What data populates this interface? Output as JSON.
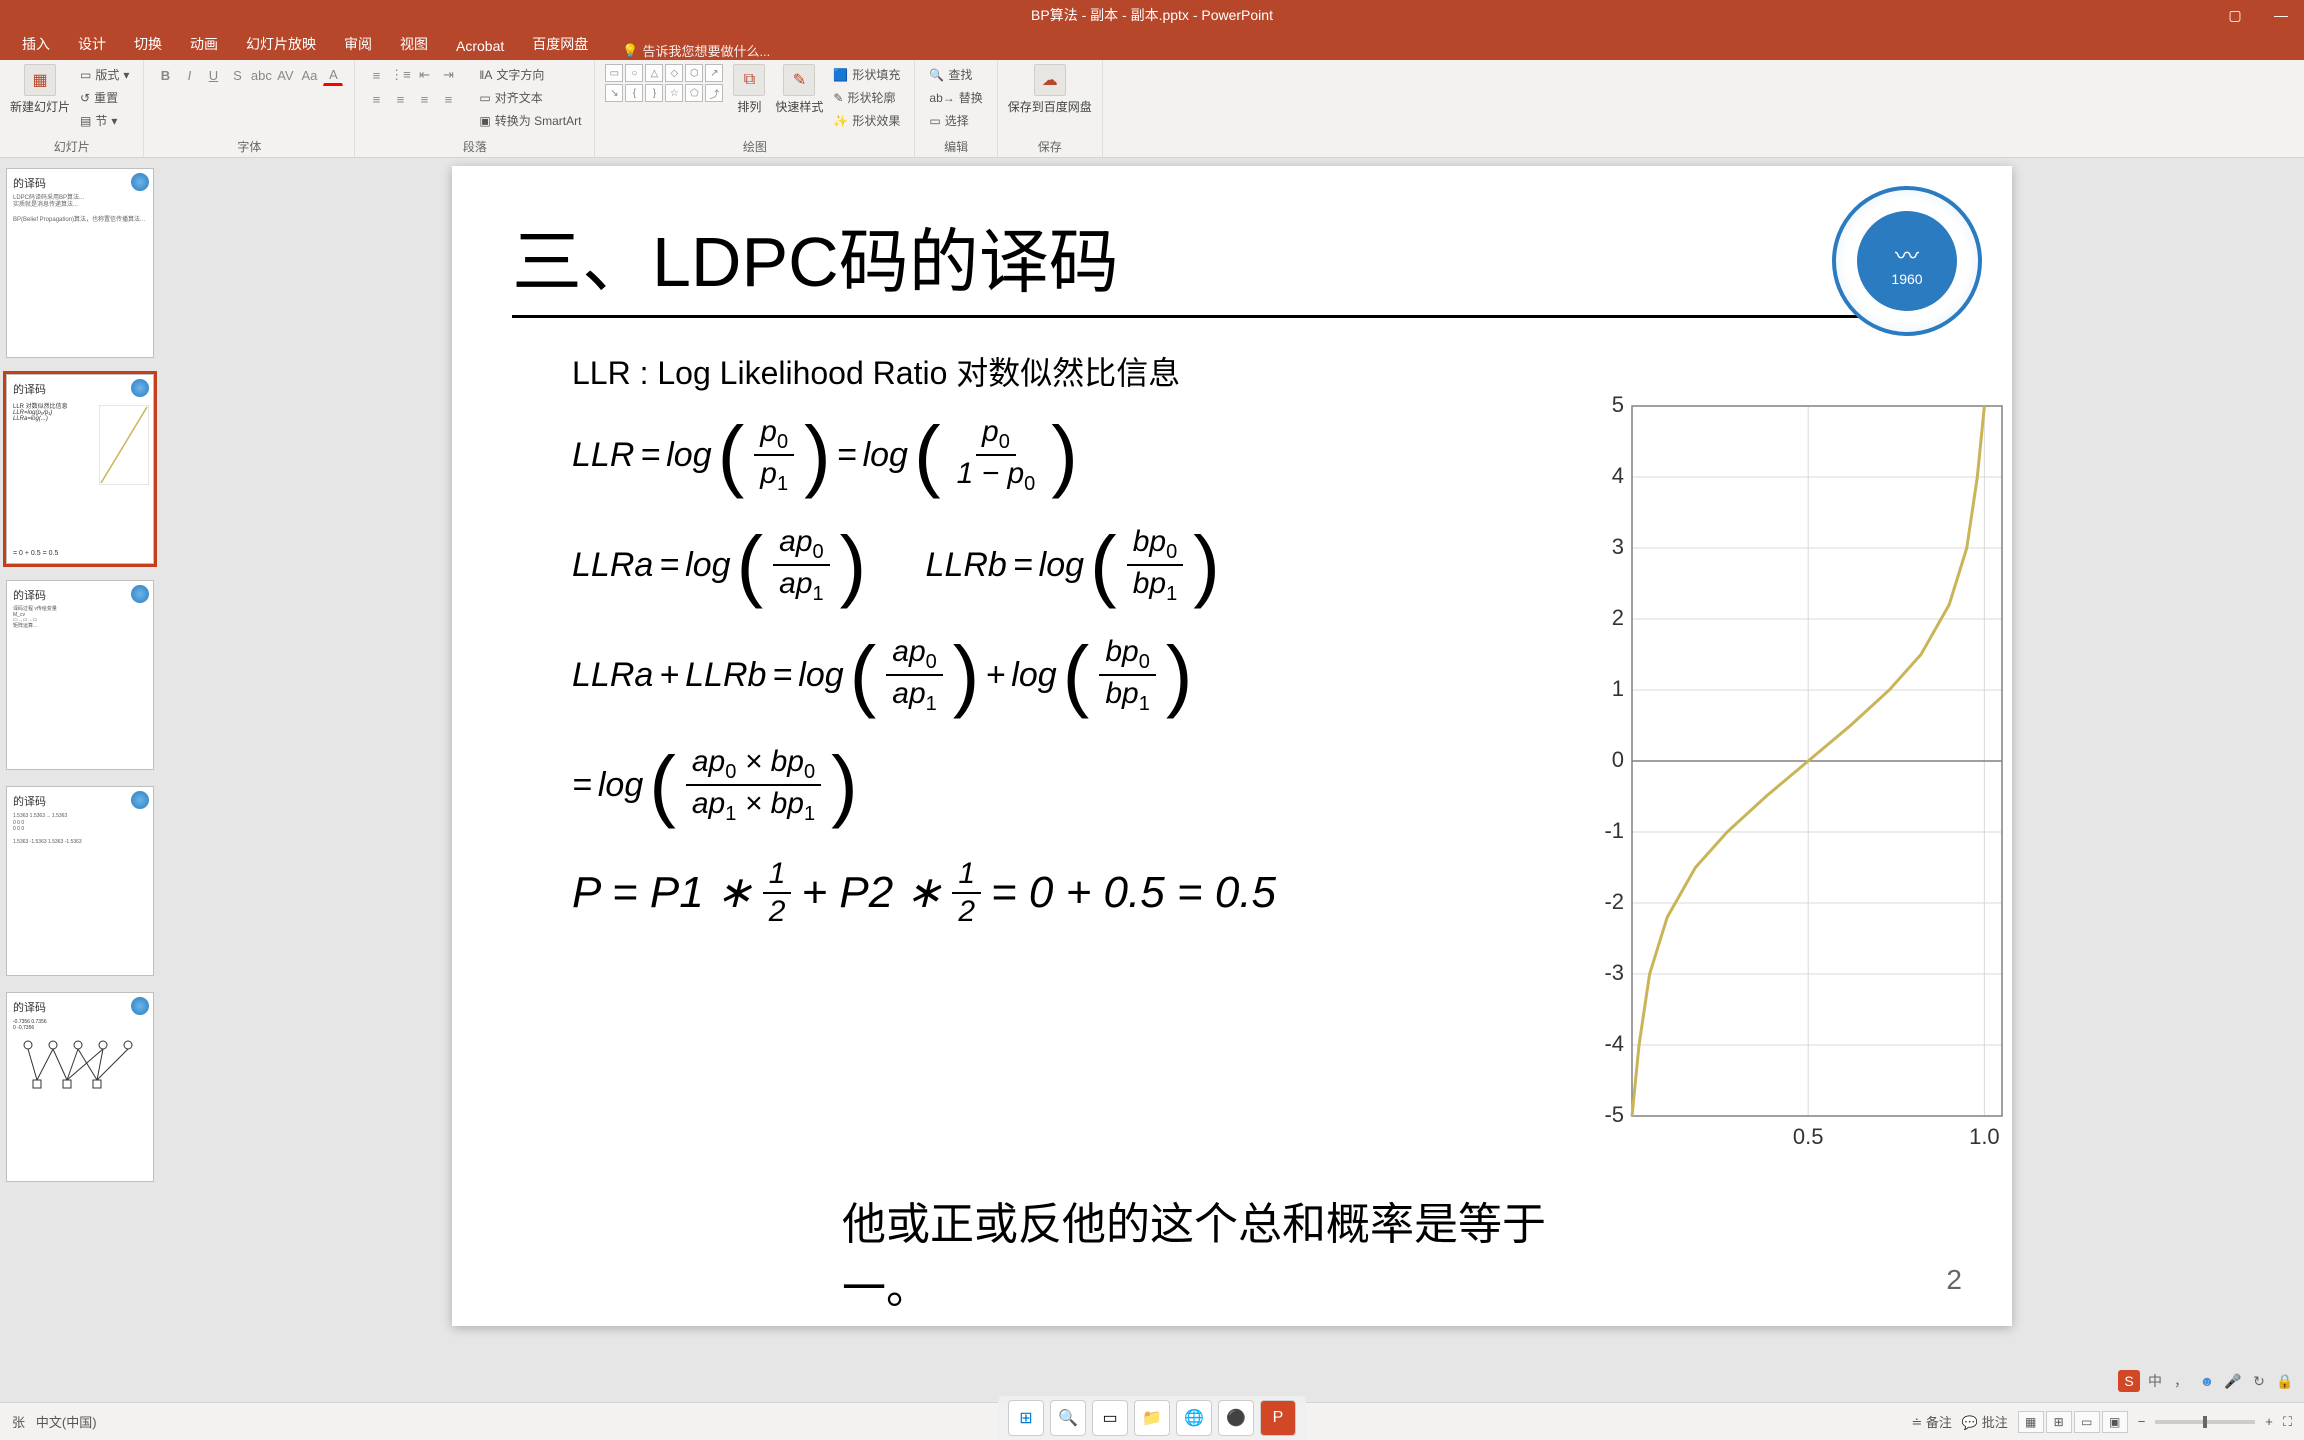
{
  "window": {
    "title": "BP算法 - 副本 - 副本.pptx - PowerPoint"
  },
  "ribbon": {
    "tabs": [
      "插入",
      "设计",
      "切换",
      "动画",
      "幻灯片放映",
      "审阅",
      "视图",
      "Acrobat",
      "百度网盘"
    ],
    "tell_me": "告诉我您想要做什么...",
    "groups": {
      "slides": {
        "label": "幻灯片",
        "new_slide": "新建幻灯片",
        "layout": "版式",
        "reset": "重置",
        "section": "节"
      },
      "font": {
        "label": "字体"
      },
      "paragraph": {
        "label": "段落",
        "text_dir": "文字方向",
        "align_text": "对齐文本",
        "smartart": "转换为 SmartArt"
      },
      "drawing": {
        "label": "绘图",
        "shape_fill": "形状填充",
        "shape_outline": "形状轮廓",
        "shape_effects": "形状效果"
      },
      "arrange": {
        "label": "",
        "arrange": "排列",
        "quick_styles": "快速样式"
      },
      "editing": {
        "label": "编辑",
        "find": "查找",
        "replace": "替换",
        "select": "选择"
      },
      "save": {
        "label": "保存",
        "save_to": "保存到百度网盘"
      }
    }
  },
  "thumbnails": [
    {
      "title": "的译码"
    },
    {
      "title": "的译码"
    },
    {
      "title": "的译码"
    },
    {
      "title": "的译码"
    },
    {
      "title": "的译码"
    }
  ],
  "slide": {
    "heading": "三、LDPC码的译码",
    "subtitle": "LLR : Log Likelihood Ratio 对数似然比信息",
    "logo_year": "1960",
    "eq_llr": "LLR",
    "eq_log": "log",
    "eq_llra": "LLRa",
    "eq_llrb": "LLRb",
    "final_eq": "P = P1 * ½ + P2 * ½ = 0 + 0.5 = 0.5",
    "caption": "他或正或反他的这个总和概率是等于一。",
    "pagenum": "2",
    "chart": {
      "ylim": [
        -5,
        5
      ],
      "yticks": [
        -5,
        -4,
        -3,
        -2,
        -1,
        0,
        1,
        2,
        3,
        4,
        5
      ],
      "xticks": [
        0.5,
        1.0
      ],
      "line_color": "#c9b458",
      "grid_color": "#d9d9d9",
      "axis_color": "#808080",
      "points": [
        [
          0.0,
          -5.0
        ],
        [
          0.02,
          -4.0
        ],
        [
          0.05,
          -3.0
        ],
        [
          0.1,
          -2.2
        ],
        [
          0.18,
          -1.5
        ],
        [
          0.27,
          -1.0
        ],
        [
          0.38,
          -0.5
        ],
        [
          0.5,
          0.0
        ],
        [
          0.62,
          0.5
        ],
        [
          0.73,
          1.0
        ],
        [
          0.82,
          1.5
        ],
        [
          0.9,
          2.2
        ],
        [
          0.95,
          3.0
        ],
        [
          0.98,
          4.0
        ],
        [
          1.0,
          5.0
        ]
      ]
    }
  },
  "statusbar": {
    "left_lang": "中文(中国)",
    "left_slide": "张",
    "notes": "备注",
    "comments": "批注"
  },
  "ime": {
    "items": [
      "中",
      "，",
      "●",
      "🎤",
      "↻",
      "🔒"
    ]
  },
  "taskbar": {
    "icons": [
      "⊞",
      "🔍",
      "▭",
      "📁",
      "🌐",
      "⚙",
      "P"
    ]
  }
}
